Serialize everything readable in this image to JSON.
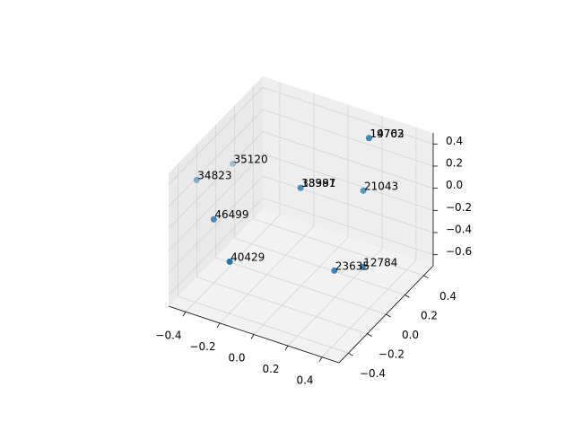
{
  "chart_data": {
    "type": "scatter3d",
    "labels": [
      "14763",
      "19702",
      "38381",
      "13997",
      "21043",
      "35120",
      "34823",
      "46499",
      "40429",
      "23635",
      "12784"
    ],
    "x": [
      0.19,
      0.19,
      -0.09,
      -0.09,
      0.2,
      -0.4,
      -0.49,
      -0.34,
      -0.23,
      0.13,
      0.24
    ],
    "y": [
      0.38,
      0.38,
      0.16,
      0.16,
      0.3,
      0.0,
      -0.22,
      -0.31,
      -0.34,
      0.12,
      0.22
    ],
    "z": [
      0.4,
      0.4,
      0.0,
      0.0,
      0.0,
      0.2,
      0.2,
      0.0,
      -0.3,
      -0.6,
      -0.6
    ],
    "color": "#1f77b4",
    "xlim": [
      -0.5,
      0.5
    ],
    "ylim": [
      -0.5,
      0.5
    ],
    "zlim": [
      -0.7,
      0.5
    ],
    "xticks": [
      {
        "value": -0.4,
        "label": "−0.4"
      },
      {
        "value": -0.2,
        "label": "−0.2"
      },
      {
        "value": 0.0,
        "label": "0.0"
      },
      0.2,
      0.4
    ],
    "yticks": [
      {
        "value": -0.4,
        "label": "−0.4"
      },
      {
        "value": -0.2,
        "label": "−0.2"
      },
      {
        "value": 0.0,
        "label": "0.0"
      },
      0.2,
      0.4
    ],
    "zticks": [
      {
        "value": -0.6,
        "label": "−0.6"
      },
      {
        "value": -0.4,
        "label": "−0.4"
      },
      {
        "value": -0.2,
        "label": "−0.2"
      },
      {
        "value": 0.0,
        "label": "0.0"
      },
      0.2,
      0.4
    ],
    "grid": true
  }
}
